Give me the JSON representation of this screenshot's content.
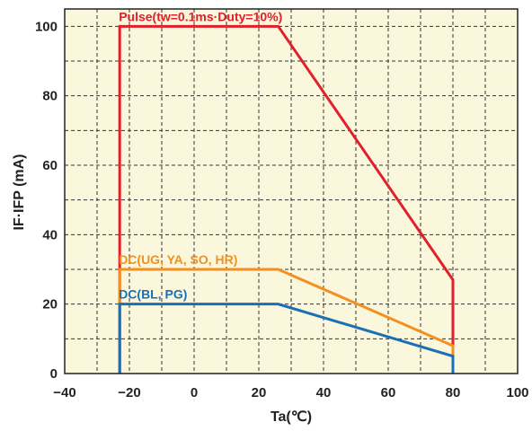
{
  "chart_data": {
    "type": "line",
    "xlabel": "Ta(℃)",
    "ylabel": "IF·IFP (mA)",
    "xlim": [
      -40,
      100
    ],
    "ylim": [
      0,
      105
    ],
    "x_ticks": [
      -40,
      -20,
      0,
      20,
      40,
      60,
      80,
      100
    ],
    "y_ticks": [
      0,
      20,
      40,
      60,
      80,
      100
    ],
    "x_minor_step": 10,
    "y_minor_step": 10,
    "grid": true,
    "plot_background": "#fbf7dc",
    "series": [
      {
        "name": "Pulse(tw=0.1ms·Duty=10%)",
        "color": "#e0202a",
        "points": [
          [
            -23,
            0
          ],
          [
            -23,
            100
          ],
          [
            26,
            100
          ],
          [
            80,
            27
          ],
          [
            80,
            0
          ]
        ]
      },
      {
        "name": "DC(UG, YA, SO, HR)",
        "color": "#f39020",
        "points": [
          [
            -23,
            0
          ],
          [
            -23,
            30
          ],
          [
            26,
            30
          ],
          [
            80,
            8
          ],
          [
            80,
            0
          ]
        ]
      },
      {
        "name": "DC(BL, PG)",
        "color": "#1a6fb5",
        "points": [
          [
            -23,
            0
          ],
          [
            -23,
            20
          ],
          [
            26,
            20
          ],
          [
            80,
            5
          ],
          [
            80,
            0
          ]
        ]
      }
    ]
  }
}
